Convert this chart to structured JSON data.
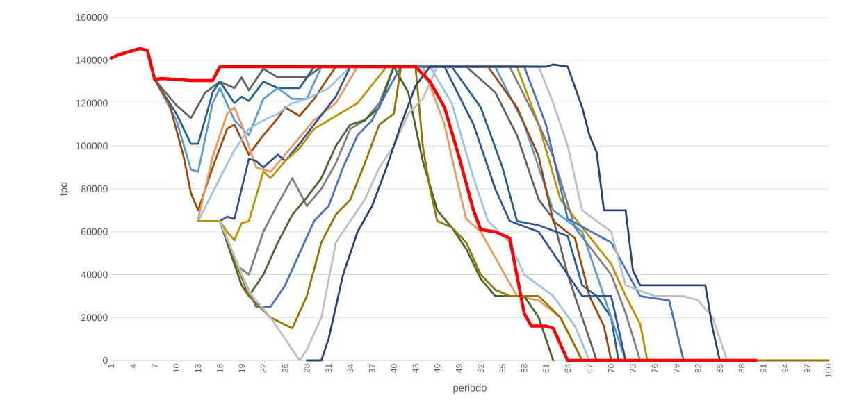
{
  "chart_data": {
    "type": "line",
    "xlabel": "periodo",
    "ylabel": "tpd",
    "xlim": [
      1,
      100
    ],
    "xticks": [
      1,
      4,
      7,
      10,
      13,
      16,
      19,
      22,
      25,
      28,
      31,
      34,
      37,
      40,
      43,
      46,
      49,
      52,
      55,
      58,
      61,
      64,
      67,
      70,
      73,
      76,
      79,
      82,
      85,
      88,
      91,
      94,
      97,
      100
    ],
    "ylim": [
      0,
      160000
    ],
    "yticks": [
      0,
      20000,
      40000,
      60000,
      80000,
      100000,
      120000,
      140000,
      160000
    ],
    "grid": "y",
    "series": [
      {
        "color": "#636363",
        "x": [
          7,
          10,
          12,
          14,
          16,
          18,
          19,
          20,
          22,
          24,
          28,
          30,
          50,
          54,
          57,
          60,
          62,
          64,
          66,
          68
        ],
        "values": [
          131000,
          119000,
          113000,
          125000,
          130000,
          127000,
          132000,
          126000,
          136000,
          132000,
          132000,
          137000,
          137000,
          125000,
          105000,
          75000,
          66000,
          40000,
          20000,
          0
        ]
      },
      {
        "color": "#255e91",
        "x": [
          7,
          10,
          12,
          13,
          15,
          16,
          18,
          19,
          20,
          22,
          24,
          27,
          29,
          48,
          52,
          55,
          57,
          60,
          64,
          66,
          68,
          70,
          71
        ],
        "values": [
          131000,
          115000,
          101000,
          101000,
          125000,
          130000,
          120000,
          123000,
          121000,
          130000,
          127000,
          127000,
          137000,
          137000,
          118000,
          90000,
          65000,
          63000,
          58000,
          35000,
          30000,
          20000,
          0
        ]
      },
      {
        "color": "#5b9bd5",
        "x": [
          7,
          10,
          12,
          13,
          15,
          16,
          18,
          20,
          22,
          24,
          26,
          28,
          30,
          54,
          58,
          62,
          66,
          69,
          72
        ],
        "values": [
          131000,
          112000,
          89000,
          88000,
          120000,
          127000,
          112000,
          105000,
          122000,
          127000,
          122000,
          122000,
          137000,
          137000,
          110000,
          70000,
          60000,
          30000,
          0
        ]
      },
      {
        "color": "#9e480e",
        "x": [
          7,
          9,
          11,
          12,
          13,
          15,
          17,
          18,
          20,
          22,
          24,
          25,
          27,
          29,
          32,
          53,
          57,
          60,
          62,
          65,
          67,
          69,
          70
        ],
        "values": [
          131000,
          120000,
          95000,
          78000,
          70000,
          90000,
          108000,
          110000,
          96000,
          105000,
          113000,
          118000,
          114000,
          122000,
          137000,
          137000,
          118000,
          95000,
          65000,
          57000,
          30000,
          16000,
          0
        ]
      },
      {
        "color": "#f1975a",
        "x": [
          13,
          15,
          17,
          18,
          19,
          21,
          23,
          25,
          27,
          29,
          32,
          35,
          44,
          47,
          49,
          50,
          52,
          55,
          57,
          60,
          63,
          66
        ],
        "values": [
          66000,
          95000,
          115000,
          118000,
          110000,
          90000,
          88000,
          96000,
          104000,
          112000,
          120000,
          137000,
          137000,
          110000,
          80000,
          66000,
          60000,
          42000,
          30000,
          28000,
          20000,
          0
        ]
      },
      {
        "color": "#9dc3e6",
        "x": [
          13,
          16,
          18,
          20,
          22,
          24,
          26,
          28,
          31,
          34,
          45,
          48,
          51,
          53,
          56,
          58,
          62,
          65,
          67
        ],
        "values": [
          65000,
          85000,
          98000,
          108000,
          112000,
          115000,
          120000,
          122000,
          127000,
          137000,
          137000,
          120000,
          85000,
          65000,
          55000,
          40000,
          30000,
          16000,
          0
        ]
      },
      {
        "color": "#2f5597",
        "x": [
          16,
          17,
          18,
          19,
          20,
          21,
          22,
          24,
          25,
          27,
          29,
          32,
          34,
          47,
          51,
          54,
          56,
          60,
          63,
          66,
          70,
          72
        ],
        "values": [
          65000,
          67000,
          66000,
          80000,
          94000,
          93000,
          90000,
          96000,
          93000,
          101000,
          110000,
          123000,
          137000,
          137000,
          110000,
          80000,
          65000,
          60000,
          45000,
          30000,
          30000,
          0
        ]
      },
      {
        "color": "#bf9000",
        "x": [
          13,
          16,
          17,
          18,
          19,
          20,
          22,
          23,
          25,
          27,
          29,
          31,
          35,
          39,
          57,
          60,
          63,
          66,
          70,
          72,
          74,
          75
        ],
        "values": [
          65000,
          65000,
          60000,
          56000,
          64000,
          65000,
          88000,
          85000,
          93000,
          99000,
          108000,
          112000,
          120000,
          137000,
          137000,
          110000,
          75000,
          62000,
          45000,
          30000,
          17000,
          0
        ]
      },
      {
        "color": "#7f7f7f",
        "x": [
          16,
          18,
          20,
          22,
          24,
          26,
          28,
          30,
          32,
          34,
          36,
          38,
          40,
          56,
          60,
          62,
          65,
          70,
          72,
          74
        ],
        "values": [
          65000,
          45000,
          40000,
          60000,
          73000,
          85000,
          72000,
          80000,
          92000,
          108000,
          112000,
          120000,
          137000,
          137000,
          110000,
          95000,
          62000,
          40000,
          22000,
          0
        ]
      },
      {
        "color": "#43682b",
        "x": [
          16,
          19,
          20,
          22,
          24,
          26,
          28,
          30,
          32,
          34,
          36,
          38,
          40,
          42,
          44,
          46,
          48,
          50,
          52,
          54,
          58,
          60,
          62
        ],
        "values": [
          65000,
          35000,
          30000,
          40000,
          55000,
          68000,
          76000,
          85000,
          100000,
          110000,
          112000,
          118000,
          137000,
          125000,
          93000,
          70000,
          62000,
          52000,
          38000,
          30000,
          30000,
          20000,
          0
        ]
      },
      {
        "color": "#4472c4",
        "x": [
          16,
          19,
          21,
          23,
          25,
          27,
          29,
          31,
          33,
          35,
          37,
          39,
          41,
          58,
          61,
          64,
          70,
          74,
          78,
          80
        ],
        "values": [
          65000,
          40000,
          25000,
          25000,
          35000,
          50000,
          65000,
          72000,
          90000,
          105000,
          112000,
          125000,
          137000,
          137000,
          110000,
          66000,
          55000,
          30000,
          28000,
          0
        ]
      },
      {
        "color": "#997300",
        "x": [
          16,
          20,
          23,
          26,
          28,
          30,
          32,
          34,
          36,
          38,
          40,
          41,
          43,
          44,
          45,
          46,
          48,
          50,
          52,
          54,
          56,
          60,
          63,
          66,
          100
        ],
        "values": [
          65000,
          30000,
          20000,
          15000,
          30000,
          55000,
          68000,
          75000,
          92000,
          110000,
          115000,
          137000,
          137000,
          100000,
          80000,
          65000,
          62000,
          55000,
          40000,
          33000,
          30000,
          30000,
          20000,
          0,
          0
        ]
      },
      {
        "color": "#bfbfbf",
        "x": [
          16,
          20,
          23,
          27,
          28,
          30,
          32,
          34,
          36,
          38,
          40,
          42,
          44,
          46,
          60,
          62,
          64,
          66,
          70,
          72,
          76,
          80,
          82,
          84,
          86
        ],
        "values": [
          65000,
          32000,
          20000,
          0,
          5000,
          20000,
          55000,
          65000,
          75000,
          90000,
          100000,
          115000,
          122000,
          137000,
          137000,
          120000,
          100000,
          70000,
          60000,
          35000,
          30000,
          30000,
          28000,
          20000,
          0
        ]
      },
      {
        "color": "#264478",
        "x": [
          28,
          30,
          31,
          33,
          35,
          37,
          39,
          41,
          43,
          45,
          61,
          62,
          64,
          66,
          67,
          68,
          69,
          72,
          73,
          74,
          83,
          84,
          85
        ],
        "values": [
          0,
          0,
          10000,
          40000,
          60000,
          72000,
          90000,
          110000,
          128000,
          137000,
          137000,
          138000,
          137000,
          118000,
          105000,
          97000,
          70000,
          70000,
          42000,
          35000,
          35000,
          15000,
          0
        ]
      },
      {
        "color": "#ff0000",
        "x": [
          1,
          2,
          5,
          6,
          7,
          8,
          10,
          12,
          15,
          16,
          43,
          45,
          47,
          49,
          51,
          52,
          54,
          56,
          58,
          59,
          61,
          62,
          64,
          90
        ],
        "values": [
          141000,
          142500,
          145500,
          144500,
          131000,
          131500,
          131000,
          130500,
          130500,
          137000,
          137000,
          130000,
          118000,
          95000,
          70000,
          61000,
          60000,
          57000,
          22000,
          16000,
          16000,
          15000,
          0,
          0
        ]
      }
    ]
  }
}
